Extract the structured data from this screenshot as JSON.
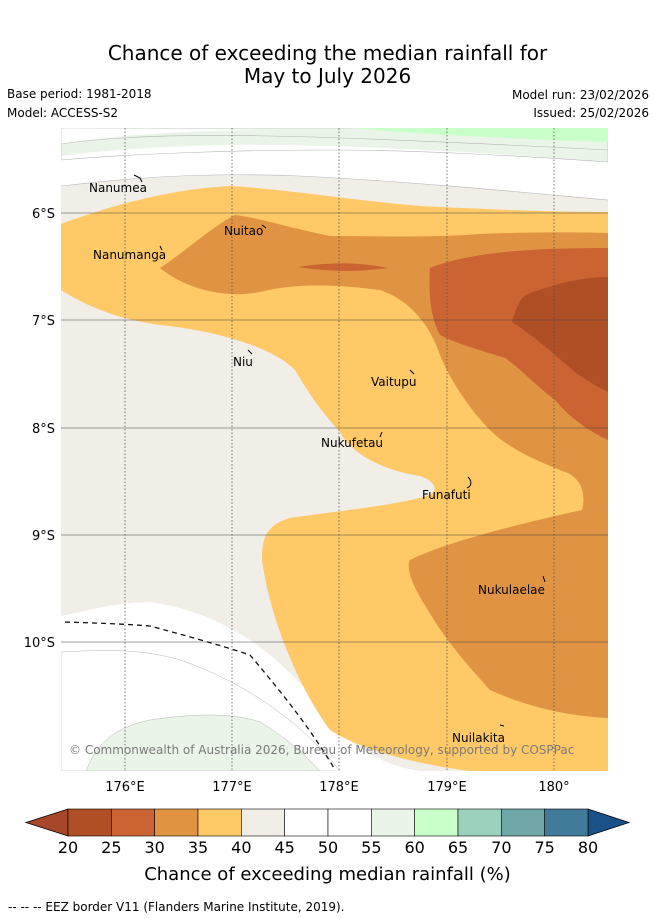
{
  "title_line1": "Chance of exceeding the median rainfall for",
  "title_line2": "May to July 2026",
  "base_period": "Base period: 1981-2018",
  "model": "Model: ACCESS-S2",
  "model_run": "Model run: 23/02/2026",
  "issued": "Issued: 25/02/2026",
  "copyright": "© Commonwealth of Australia 2026, Bureau of Meteorology, supported by COSPPac",
  "footnote": "--  --  -- EEZ border V11 (Flanders Marine Institute, 2019).",
  "map": {
    "lat_labels": [
      "6°S",
      "7°S",
      "8°S",
      "9°S",
      "10°S"
    ],
    "lon_labels": [
      "176°E",
      "177°E",
      "178°E",
      "179°E",
      "180°"
    ],
    "places": [
      {
        "name": "Nanumea"
      },
      {
        "name": "Nuitao"
      },
      {
        "name": "Nanumanga"
      },
      {
        "name": "Niu"
      },
      {
        "name": "Vaitupu"
      },
      {
        "name": "Nukufetau"
      },
      {
        "name": "Funafuti"
      },
      {
        "name": "Nukulaelae"
      },
      {
        "name": "Nuilakita"
      }
    ]
  },
  "colorbar": {
    "label": "Chance of exceeding median rainfall (%)",
    "ticks": [
      "20",
      "25",
      "30",
      "35",
      "40",
      "45",
      "50",
      "55",
      "60",
      "65",
      "70",
      "75",
      "80"
    ],
    "colors": [
      "#b04e26",
      "#cb6432",
      "#e09443",
      "#fec966",
      "#f1ede7",
      "#ffffff",
      "#ffffff",
      "#eaf4e8",
      "#c9ffc9",
      "#9cd1bd",
      "#70a7a9",
      "#417b99"
    ],
    "under_color": "#a8462a",
    "over_color": "#1b5189"
  }
}
